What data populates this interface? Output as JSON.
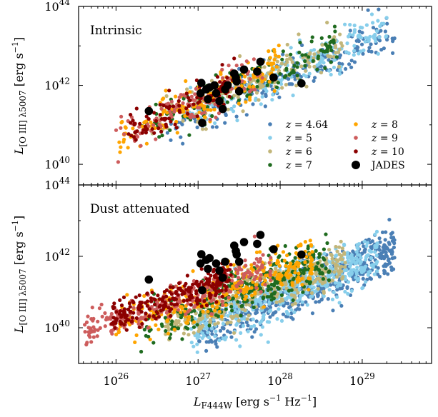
{
  "chart_data": {
    "type": "scatter",
    "x_scale": "log",
    "y_scale": "log",
    "xlabel": "L_F444W [erg s^-1 Hz^-1]",
    "xlim": [
      3.5e+25,
      7e+29
    ],
    "x_ticks": [
      {
        "value": 1e+26,
        "base": "10",
        "exp": "26"
      },
      {
        "value": 1e+27,
        "base": "10",
        "exp": "27"
      },
      {
        "value": 1e+28,
        "base": "10",
        "exp": "28"
      },
      {
        "value": 1e+29,
        "base": "10",
        "exp": "29"
      }
    ],
    "ylabel": "L_[O III] λ5007 [erg s^-1]",
    "ylabel_parts": {
      "main": "L",
      "sub": "[O III] λ5007",
      "units": " [erg s",
      "units_exp": "−1",
      "units_close": "]"
    },
    "xlabel_parts": {
      "main": "L",
      "sub": "F444W",
      "units": " [erg s",
      "units_exp1": "−1",
      "units_mid": " Hz",
      "units_exp2": "−1",
      "units_close": "]"
    },
    "legend": {
      "placement": "bottom-right of top panel",
      "entries": [
        {
          "label_prefix": "z",
          "label": " = 4.64",
          "color": "#4a7fb5",
          "marker": "small-dot"
        },
        {
          "label_prefix": "z",
          "label": " = 5",
          "color": "#87ceeb",
          "marker": "small-dot"
        },
        {
          "label_prefix": "z",
          "label": " = 6",
          "color": "#c2b67a",
          "marker": "small-dot"
        },
        {
          "label_prefix": "z",
          "label": " = 7",
          "color": "#1f6b1f",
          "marker": "small-dot"
        },
        {
          "label_prefix": "z",
          "label": " = 8",
          "color": "#ffa500",
          "marker": "small-dot"
        },
        {
          "label_prefix": "z",
          "label": " = 9",
          "color": "#cd5c5c",
          "marker": "small-dot"
        },
        {
          "label_prefix": "z",
          "label": " = 10",
          "color": "#8b0000",
          "marker": "small-dot"
        },
        {
          "label_prefix": "",
          "label": "JADES",
          "color": "#000000",
          "marker": "large-dot"
        }
      ]
    },
    "panels": [
      {
        "title": "Intrinsic",
        "ylim": [
          3e+39,
          1e+44
        ],
        "y_ticks": [
          {
            "value": 1e+40,
            "base": "10",
            "exp": "40"
          },
          {
            "value": 1e+42,
            "base": "10",
            "exp": "42"
          },
          {
            "value": 1e+44,
            "base": "10",
            "exp": "44"
          }
        ],
        "populations": [
          {
            "name": "z = 4.64",
            "color": "#4a7fb5",
            "n": 220,
            "logx_range": [
              26.6,
              29.4
            ],
            "slope": 0.88,
            "offset_at_27": 41.25,
            "scatter": 0.28
          },
          {
            "name": "z = 5",
            "color": "#87ceeb",
            "n": 200,
            "logx_range": [
              26.7,
              29.3
            ],
            "slope": 0.88,
            "offset_at_27": 41.35,
            "scatter": 0.25
          },
          {
            "name": "z = 6",
            "color": "#c2b67a",
            "n": 180,
            "logx_range": [
              26.4,
              28.8
            ],
            "slope": 0.9,
            "offset_at_27": 41.45,
            "scatter": 0.25
          },
          {
            "name": "z = 7",
            "color": "#1f6b1f",
            "n": 160,
            "logx_range": [
              26.3,
              28.7
            ],
            "slope": 0.9,
            "offset_at_27": 41.5,
            "scatter": 0.25
          },
          {
            "name": "z = 8",
            "color": "#ffa500",
            "n": 160,
            "logx_range": [
              26.0,
              28.0
            ],
            "slope": 0.92,
            "offset_at_27": 41.55,
            "scatter": 0.25
          },
          {
            "name": "z = 9",
            "color": "#cd5c5c",
            "n": 120,
            "logx_range": [
              26.0,
              27.8
            ],
            "slope": 0.92,
            "offset_at_27": 41.6,
            "scatter": 0.25
          },
          {
            "name": "z = 10",
            "color": "#8b0000",
            "n": 100,
            "logx_range": [
              26.1,
              27.5
            ],
            "slope": 0.92,
            "offset_at_27": 41.65,
            "scatter": 0.25
          }
        ]
      },
      {
        "title": "Dust attenuated",
        "ylim": [
          1e+39,
          1e+44
        ],
        "y_ticks": [
          {
            "value": 1e+40,
            "base": "10",
            "exp": "40"
          },
          {
            "value": 1e+42,
            "base": "10",
            "exp": "42"
          },
          {
            "value": 1e+44,
            "base": "10",
            "exp": "44"
          }
        ],
        "populations": [
          {
            "name": "z = 4.64",
            "color": "#4a7fb5",
            "n": 520,
            "logx_range": [
              27.0,
              29.4
            ],
            "slope": 0.95,
            "offset_at_27": 39.9,
            "scatter": 0.35
          },
          {
            "name": "z = 5",
            "color": "#87ceeb",
            "n": 480,
            "logx_range": [
              26.9,
              29.2
            ],
            "slope": 0.92,
            "offset_at_27": 40.0,
            "scatter": 0.35
          },
          {
            "name": "z = 6",
            "color": "#c2b67a",
            "n": 380,
            "logx_range": [
              26.6,
              28.8
            ],
            "slope": 0.88,
            "offset_at_27": 40.35,
            "scatter": 0.3
          },
          {
            "name": "z = 7",
            "color": "#1f6b1f",
            "n": 320,
            "logx_range": [
              26.3,
              28.6
            ],
            "slope": 0.85,
            "offset_at_27": 40.6,
            "scatter": 0.3
          },
          {
            "name": "z = 8",
            "color": "#ffa500",
            "n": 300,
            "logx_range": [
              26.0,
              28.4
            ],
            "slope": 0.82,
            "offset_at_27": 40.8,
            "scatter": 0.3
          },
          {
            "name": "z = 9",
            "color": "#cd5c5c",
            "n": 260,
            "logx_range": [
              25.6,
              27.9
            ],
            "slope": 0.78,
            "offset_at_27": 40.95,
            "scatter": 0.25
          },
          {
            "name": "z = 10",
            "color": "#8b0000",
            "n": 240,
            "logx_range": [
              25.9,
              27.4
            ],
            "slope": 0.75,
            "offset_at_27": 41.05,
            "scatter": 0.22
          }
        ]
      }
    ],
    "jades": {
      "color": "#000000",
      "points": [
        [
          26.4,
          41.35
        ],
        [
          27.04,
          42.06
        ],
        [
          27.14,
          41.95
        ],
        [
          27.1,
          41.9
        ],
        [
          27.03,
          41.8
        ],
        [
          27.12,
          41.65
        ],
        [
          27.22,
          41.8
        ],
        [
          27.26,
          41.6
        ],
        [
          27.33,
          41.9
        ],
        [
          27.46,
          42.2
        ],
        [
          27.47,
          42.1
        ],
        [
          27.5,
          41.85
        ],
        [
          27.56,
          42.4
        ],
        [
          27.76,
          42.6
        ],
        [
          27.72,
          42.35
        ],
        [
          27.92,
          42.2
        ],
        [
          28.26,
          42.05
        ],
        [
          27.05,
          41.05
        ],
        [
          27.3,
          41.4
        ],
        [
          27.44,
          42.3
        ],
        [
          27.2,
          42.0
        ],
        [
          27.36,
          42.0
        ]
      ],
      "dust_points": [
        [
          26.4,
          41.35
        ],
        [
          27.04,
          42.06
        ],
        [
          27.14,
          41.95
        ],
        [
          27.1,
          41.9
        ],
        [
          27.03,
          41.8
        ],
        [
          27.12,
          41.65
        ],
        [
          27.22,
          41.8
        ],
        [
          27.26,
          41.6
        ],
        [
          27.33,
          41.85
        ],
        [
          27.46,
          42.15
        ],
        [
          27.47,
          42.05
        ],
        [
          27.5,
          41.85
        ],
        [
          27.56,
          42.4
        ],
        [
          27.76,
          42.6
        ],
        [
          27.72,
          42.35
        ],
        [
          27.92,
          42.2
        ],
        [
          28.26,
          42.05
        ],
        [
          27.05,
          41.05
        ],
        [
          27.3,
          41.4
        ],
        [
          27.44,
          42.3
        ]
      ]
    }
  }
}
